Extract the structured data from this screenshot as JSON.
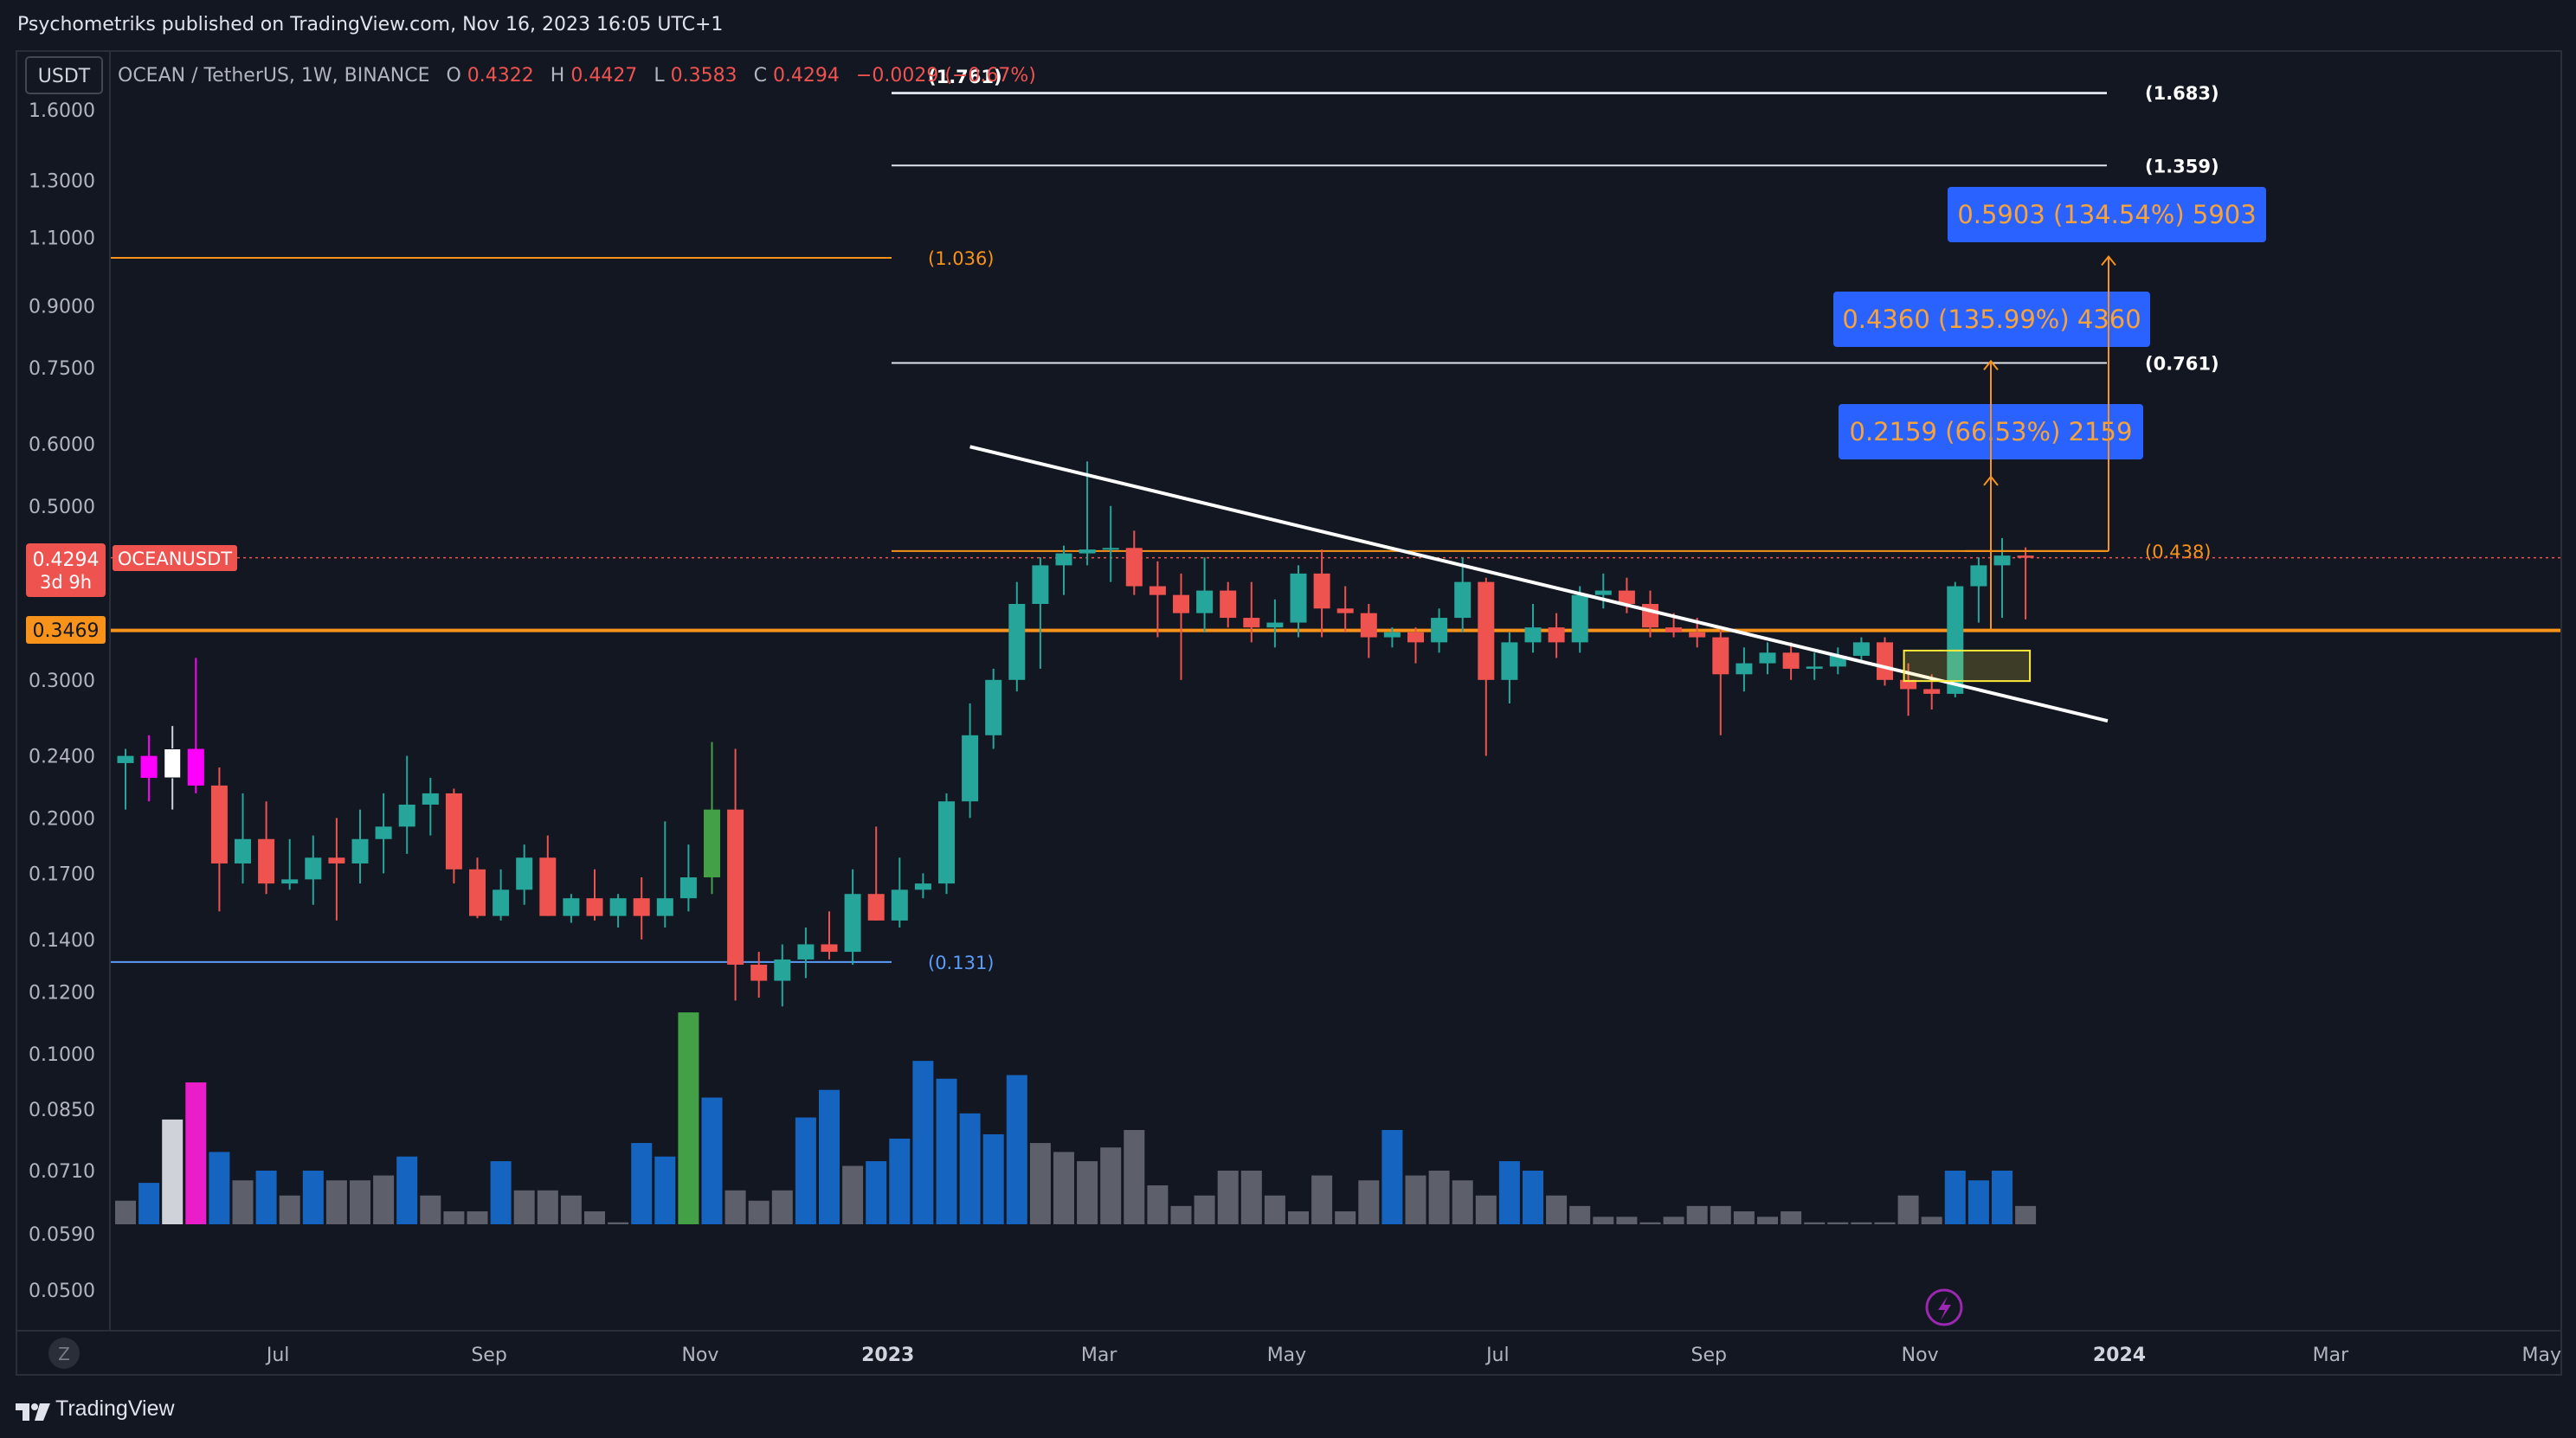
{
  "header": {
    "publisher_text": "Psychometriks published on TradingView.com, Nov 16, 2023 16:05 UTC+1"
  },
  "currency_button": "USDT",
  "legend": {
    "symbol": "OCEAN / TetherUS, 1W, BINANCE",
    "o_label": "O",
    "o_value": "0.4322",
    "h_label": "H",
    "h_value": "0.4427",
    "l_label": "L",
    "l_value": "0.3583",
    "c_label": "C",
    "c_value": "0.4294",
    "change": "−0.0029 (−0.67%)"
  },
  "price_badge": {
    "value": "0.4294",
    "countdown": "3d 9h",
    "symbol": "OCEANUSDT"
  },
  "support_badge": "0.3469",
  "footer": {
    "brand": "TradingView"
  },
  "z_button": "Z",
  "colors": {
    "background": "#131722",
    "up": "#26a69a",
    "down": "#ef5350",
    "orange": "#f7931a",
    "blue_label": "#2962ff",
    "volume_blue": "#1565c0",
    "volume_gray": "#5d606b"
  },
  "chart_data": {
    "type": "candlestick",
    "scale": "log",
    "ylim": [
      0.046,
      1.75
    ],
    "y_ticks": [
      "1.6000",
      "1.3000",
      "1.1000",
      "0.9000",
      "0.7500",
      "0.6000",
      "0.5000",
      "0.3000",
      "0.2400",
      "0.2000",
      "0.1700",
      "0.1400",
      "0.1200",
      "0.1000",
      "0.0850",
      "0.0710",
      "0.0590",
      "0.0500"
    ],
    "y_tick_values": [
      1.6,
      1.3,
      1.1,
      0.9,
      0.75,
      0.6,
      0.5,
      0.3,
      0.24,
      0.2,
      0.17,
      0.14,
      0.12,
      0.1,
      0.085,
      0.071,
      0.059,
      0.05
    ],
    "x_ticks": [
      {
        "label": "Jul",
        "bar": 6.5
      },
      {
        "label": "Sep",
        "bar": 15.5
      },
      {
        "label": "Nov",
        "bar": 24.5
      },
      {
        "label": "2023",
        "bar": 32.5
      },
      {
        "label": "Mar",
        "bar": 41.5
      },
      {
        "label": "May",
        "bar": 49.5
      },
      {
        "label": "Jul",
        "bar": 58.5
      },
      {
        "label": "Sep",
        "bar": 67.5
      },
      {
        "label": "Nov",
        "bar": 76.5
      },
      {
        "label": "2024",
        "bar": 85
      },
      {
        "label": "Mar",
        "bar": 94
      },
      {
        "label": "May",
        "bar": 103
      }
    ],
    "candles": [
      {
        "o": 0.235,
        "h": 0.245,
        "l": 0.205,
        "c": 0.24
      },
      {
        "o": 0.24,
        "h": 0.255,
        "l": 0.21,
        "c": 0.225,
        "color": "#ff00ff"
      },
      {
        "o": 0.225,
        "h": 0.262,
        "l": 0.205,
        "c": 0.245,
        "color": "#ffffff"
      },
      {
        "o": 0.245,
        "h": 0.32,
        "l": 0.215,
        "c": 0.22,
        "color": "#ff00ff"
      },
      {
        "o": 0.22,
        "h": 0.232,
        "l": 0.152,
        "c": 0.175
      },
      {
        "o": 0.175,
        "h": 0.215,
        "l": 0.165,
        "c": 0.188
      },
      {
        "o": 0.188,
        "h": 0.21,
        "l": 0.16,
        "c": 0.165
      },
      {
        "o": 0.165,
        "h": 0.188,
        "l": 0.162,
        "c": 0.167
      },
      {
        "o": 0.167,
        "h": 0.19,
        "l": 0.155,
        "c": 0.178
      },
      {
        "o": 0.178,
        "h": 0.2,
        "l": 0.148,
        "c": 0.175
      },
      {
        "o": 0.175,
        "h": 0.205,
        "l": 0.165,
        "c": 0.188
      },
      {
        "o": 0.188,
        "h": 0.215,
        "l": 0.17,
        "c": 0.195
      },
      {
        "o": 0.195,
        "h": 0.24,
        "l": 0.18,
        "c": 0.208
      },
      {
        "o": 0.208,
        "h": 0.225,
        "l": 0.19,
        "c": 0.215
      },
      {
        "o": 0.215,
        "h": 0.218,
        "l": 0.165,
        "c": 0.172
      },
      {
        "o": 0.172,
        "h": 0.178,
        "l": 0.149,
        "c": 0.15
      },
      {
        "o": 0.15,
        "h": 0.172,
        "l": 0.148,
        "c": 0.162
      },
      {
        "o": 0.162,
        "h": 0.185,
        "l": 0.155,
        "c": 0.178
      },
      {
        "o": 0.178,
        "h": 0.19,
        "l": 0.15,
        "c": 0.15
      },
      {
        "o": 0.15,
        "h": 0.16,
        "l": 0.147,
        "c": 0.158
      },
      {
        "o": 0.158,
        "h": 0.172,
        "l": 0.148,
        "c": 0.15
      },
      {
        "o": 0.15,
        "h": 0.16,
        "l": 0.145,
        "c": 0.158
      },
      {
        "o": 0.158,
        "h": 0.168,
        "l": 0.14,
        "c": 0.15
      },
      {
        "o": 0.15,
        "h": 0.198,
        "l": 0.145,
        "c": 0.158
      },
      {
        "o": 0.158,
        "h": 0.185,
        "l": 0.152,
        "c": 0.168
      },
      {
        "o": 0.168,
        "h": 0.25,
        "l": 0.16,
        "c": 0.205,
        "color": "#43a047"
      },
      {
        "o": 0.205,
        "h": 0.245,
        "l": 0.117,
        "c": 0.13
      },
      {
        "o": 0.13,
        "h": 0.135,
        "l": 0.118,
        "c": 0.124
      },
      {
        "o": 0.124,
        "h": 0.138,
        "l": 0.115,
        "c": 0.132
      },
      {
        "o": 0.132,
        "h": 0.145,
        "l": 0.125,
        "c": 0.138
      },
      {
        "o": 0.138,
        "h": 0.152,
        "l": 0.132,
        "c": 0.135
      },
      {
        "o": 0.135,
        "h": 0.172,
        "l": 0.13,
        "c": 0.16
      },
      {
        "o": 0.16,
        "h": 0.195,
        "l": 0.148,
        "c": 0.148
      },
      {
        "o": 0.148,
        "h": 0.178,
        "l": 0.145,
        "c": 0.162
      },
      {
        "o": 0.162,
        "h": 0.17,
        "l": 0.158,
        "c": 0.165
      },
      {
        "o": 0.165,
        "h": 0.215,
        "l": 0.16,
        "c": 0.21
      },
      {
        "o": 0.21,
        "h": 0.28,
        "l": 0.2,
        "c": 0.255
      },
      {
        "o": 0.255,
        "h": 0.31,
        "l": 0.245,
        "c": 0.3
      },
      {
        "o": 0.3,
        "h": 0.4,
        "l": 0.29,
        "c": 0.375
      },
      {
        "o": 0.375,
        "h": 0.43,
        "l": 0.31,
        "c": 0.42
      },
      {
        "o": 0.42,
        "h": 0.445,
        "l": 0.385,
        "c": 0.435
      },
      {
        "o": 0.435,
        "h": 0.57,
        "l": 0.42,
        "c": 0.44
      },
      {
        "o": 0.44,
        "h": 0.5,
        "l": 0.4,
        "c": 0.442
      },
      {
        "o": 0.442,
        "h": 0.465,
        "l": 0.385,
        "c": 0.395
      },
      {
        "o": 0.395,
        "h": 0.425,
        "l": 0.34,
        "c": 0.385
      },
      {
        "o": 0.385,
        "h": 0.41,
        "l": 0.3,
        "c": 0.365
      },
      {
        "o": 0.365,
        "h": 0.43,
        "l": 0.345,
        "c": 0.39
      },
      {
        "o": 0.39,
        "h": 0.4,
        "l": 0.35,
        "c": 0.36
      },
      {
        "o": 0.36,
        "h": 0.4,
        "l": 0.335,
        "c": 0.35
      },
      {
        "o": 0.35,
        "h": 0.38,
        "l": 0.33,
        "c": 0.355
      },
      {
        "o": 0.355,
        "h": 0.42,
        "l": 0.34,
        "c": 0.41
      },
      {
        "o": 0.41,
        "h": 0.44,
        "l": 0.34,
        "c": 0.37
      },
      {
        "o": 0.37,
        "h": 0.395,
        "l": 0.345,
        "c": 0.365
      },
      {
        "o": 0.365,
        "h": 0.375,
        "l": 0.32,
        "c": 0.34
      },
      {
        "o": 0.34,
        "h": 0.35,
        "l": 0.33,
        "c": 0.345
      },
      {
        "o": 0.345,
        "h": 0.35,
        "l": 0.315,
        "c": 0.335
      },
      {
        "o": 0.335,
        "h": 0.37,
        "l": 0.325,
        "c": 0.36
      },
      {
        "o": 0.36,
        "h": 0.43,
        "l": 0.345,
        "c": 0.4
      },
      {
        "o": 0.4,
        "h": 0.405,
        "l": 0.24,
        "c": 0.3
      },
      {
        "o": 0.3,
        "h": 0.345,
        "l": 0.28,
        "c": 0.335
      },
      {
        "o": 0.335,
        "h": 0.375,
        "l": 0.325,
        "c": 0.35
      },
      {
        "o": 0.35,
        "h": 0.365,
        "l": 0.32,
        "c": 0.335
      },
      {
        "o": 0.335,
        "h": 0.395,
        "l": 0.325,
        "c": 0.385
      },
      {
        "o": 0.385,
        "h": 0.41,
        "l": 0.37,
        "c": 0.39
      },
      {
        "o": 0.39,
        "h": 0.405,
        "l": 0.365,
        "c": 0.375
      },
      {
        "o": 0.375,
        "h": 0.39,
        "l": 0.34,
        "c": 0.35
      },
      {
        "o": 0.35,
        "h": 0.365,
        "l": 0.34,
        "c": 0.345
      },
      {
        "o": 0.345,
        "h": 0.36,
        "l": 0.33,
        "c": 0.34
      },
      {
        "o": 0.34,
        "h": 0.35,
        "l": 0.255,
        "c": 0.305
      },
      {
        "o": 0.305,
        "h": 0.33,
        "l": 0.29,
        "c": 0.315
      },
      {
        "o": 0.315,
        "h": 0.335,
        "l": 0.305,
        "c": 0.325
      },
      {
        "o": 0.325,
        "h": 0.335,
        "l": 0.3,
        "c": 0.31
      },
      {
        "o": 0.31,
        "h": 0.325,
        "l": 0.3,
        "c": 0.312
      },
      {
        "o": 0.312,
        "h": 0.33,
        "l": 0.305,
        "c": 0.322
      },
      {
        "o": 0.322,
        "h": 0.34,
        "l": 0.315,
        "c": 0.335
      },
      {
        "o": 0.335,
        "h": 0.34,
        "l": 0.295,
        "c": 0.3
      },
      {
        "o": 0.3,
        "h": 0.315,
        "l": 0.27,
        "c": 0.292
      },
      {
        "o": 0.292,
        "h": 0.305,
        "l": 0.275,
        "c": 0.288
      },
      {
        "o": 0.288,
        "h": 0.4,
        "l": 0.285,
        "c": 0.395
      },
      {
        "o": 0.395,
        "h": 0.43,
        "l": 0.355,
        "c": 0.42
      },
      {
        "o": 0.42,
        "h": 0.455,
        "l": 0.36,
        "c": 0.4322
      },
      {
        "o": 0.4322,
        "h": 0.4427,
        "l": 0.3583,
        "c": 0.4294
      }
    ],
    "volumes": [
      {
        "v": 0.065,
        "c": "gray"
      },
      {
        "v": 0.0685,
        "c": "blue"
      },
      {
        "v": 0.0825,
        "c": "lightgray"
      },
      {
        "v": 0.092,
        "c": "magenta"
      },
      {
        "v": 0.075,
        "c": "blue"
      },
      {
        "v": 0.069,
        "c": "gray"
      },
      {
        "v": 0.071,
        "c": "blue"
      },
      {
        "v": 0.066,
        "c": "gray"
      },
      {
        "v": 0.071,
        "c": "blue"
      },
      {
        "v": 0.069,
        "c": "gray"
      },
      {
        "v": 0.069,
        "c": "gray"
      },
      {
        "v": 0.07,
        "c": "gray"
      },
      {
        "v": 0.074,
        "c": "blue"
      },
      {
        "v": 0.066,
        "c": "gray"
      },
      {
        "v": 0.063,
        "c": "gray"
      },
      {
        "v": 0.063,
        "c": "gray"
      },
      {
        "v": 0.073,
        "c": "blue"
      },
      {
        "v": 0.067,
        "c": "gray"
      },
      {
        "v": 0.067,
        "c": "gray"
      },
      {
        "v": 0.066,
        "c": "gray"
      },
      {
        "v": 0.063,
        "c": "gray"
      },
      {
        "v": 0.061,
        "c": "gray"
      },
      {
        "v": 0.077,
        "c": "blue"
      },
      {
        "v": 0.074,
        "c": "blue"
      },
      {
        "v": 0.113,
        "c": "green"
      },
      {
        "v": 0.088,
        "c": "blue"
      },
      {
        "v": 0.067,
        "c": "gray"
      },
      {
        "v": 0.065,
        "c": "gray"
      },
      {
        "v": 0.067,
        "c": "gray"
      },
      {
        "v": 0.083,
        "c": "blue"
      },
      {
        "v": 0.09,
        "c": "blue"
      },
      {
        "v": 0.072,
        "c": "gray"
      },
      {
        "v": 0.073,
        "c": "blue"
      },
      {
        "v": 0.078,
        "c": "blue"
      },
      {
        "v": 0.098,
        "c": "blue"
      },
      {
        "v": 0.093,
        "c": "blue"
      },
      {
        "v": 0.084,
        "c": "blue"
      },
      {
        "v": 0.079,
        "c": "blue"
      },
      {
        "v": 0.094,
        "c": "blue"
      },
      {
        "v": 0.077,
        "c": "gray"
      },
      {
        "v": 0.075,
        "c": "gray"
      },
      {
        "v": 0.073,
        "c": "gray"
      },
      {
        "v": 0.076,
        "c": "gray"
      },
      {
        "v": 0.08,
        "c": "gray"
      },
      {
        "v": 0.068,
        "c": "gray"
      },
      {
        "v": 0.064,
        "c": "gray"
      },
      {
        "v": 0.066,
        "c": "gray"
      },
      {
        "v": 0.071,
        "c": "gray"
      },
      {
        "v": 0.071,
        "c": "gray"
      },
      {
        "v": 0.066,
        "c": "gray"
      },
      {
        "v": 0.063,
        "c": "gray"
      },
      {
        "v": 0.07,
        "c": "gray"
      },
      {
        "v": 0.063,
        "c": "gray"
      },
      {
        "v": 0.069,
        "c": "gray"
      },
      {
        "v": 0.08,
        "c": "blue"
      },
      {
        "v": 0.07,
        "c": "gray"
      },
      {
        "v": 0.071,
        "c": "gray"
      },
      {
        "v": 0.069,
        "c": "gray"
      },
      {
        "v": 0.066,
        "c": "gray"
      },
      {
        "v": 0.073,
        "c": "blue"
      },
      {
        "v": 0.071,
        "c": "blue"
      },
      {
        "v": 0.066,
        "c": "gray"
      },
      {
        "v": 0.064,
        "c": "gray"
      },
      {
        "v": 0.062,
        "c": "gray"
      },
      {
        "v": 0.062,
        "c": "gray"
      },
      {
        "v": 0.061,
        "c": "gray"
      },
      {
        "v": 0.062,
        "c": "gray"
      },
      {
        "v": 0.064,
        "c": "gray"
      },
      {
        "v": 0.064,
        "c": "gray"
      },
      {
        "v": 0.063,
        "c": "gray"
      },
      {
        "v": 0.062,
        "c": "gray"
      },
      {
        "v": 0.063,
        "c": "gray"
      },
      {
        "v": 0.061,
        "c": "gray"
      },
      {
        "v": 0.061,
        "c": "gray"
      },
      {
        "v": 0.061,
        "c": "gray"
      },
      {
        "v": 0.061,
        "c": "gray"
      },
      {
        "v": 0.066,
        "c": "gray"
      },
      {
        "v": 0.062,
        "c": "gray"
      },
      {
        "v": 0.071,
        "c": "blue"
      },
      {
        "v": 0.069,
        "c": "blue"
      },
      {
        "v": 0.071,
        "c": "blue"
      },
      {
        "v": 0.064,
        "c": "gray"
      }
    ],
    "fib_levels": [
      {
        "label": "(1.761)",
        "value": 1.761
      },
      {
        "label": "(1.683)",
        "value": 1.683
      },
      {
        "label": "(1.359)",
        "value": 1.359
      },
      {
        "label": "(1.036)",
        "value": 1.036
      },
      {
        "label": "(0.761)",
        "value": 0.761
      },
      {
        "label": "(0.438)",
        "value": 0.438
      },
      {
        "label": "(0.131)",
        "value": 0.131
      }
    ],
    "support_line": 0.3469,
    "trendline": {
      "from": {
        "bar": 36,
        "price": 0.595
      },
      "to": {
        "bar": 84.5,
        "price": 0.266
      }
    },
    "projections": [
      {
        "label": "0.2159 (66.53%) 2159",
        "target": 0.545
      },
      {
        "label": "0.4360 (135.99%) 4360",
        "target": 0.765
      },
      {
        "label": "0.5903 (134.54%) 5903",
        "target": 1.04
      }
    ],
    "breakout_box": {
      "from_bar": 76,
      "to_bar": 81,
      "low": 0.299,
      "high": 0.327
    }
  }
}
